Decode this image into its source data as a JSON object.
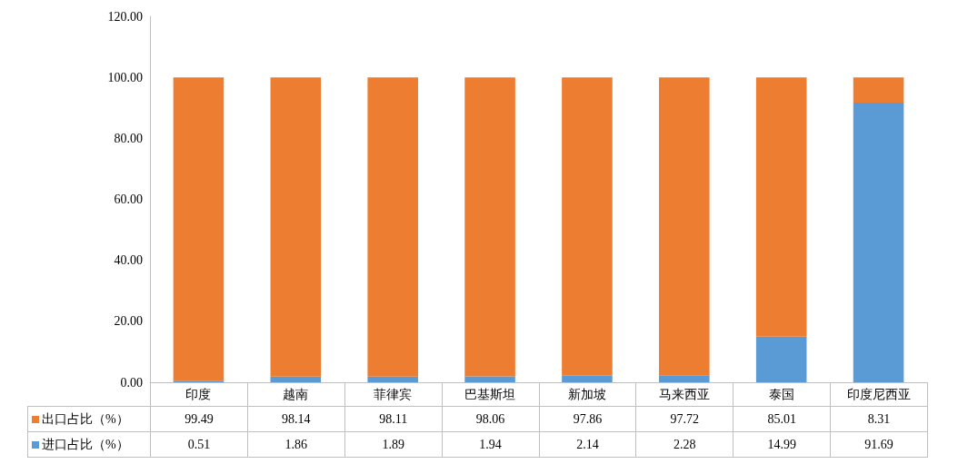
{
  "chart_data": {
    "type": "bar",
    "stacked": true,
    "categories": [
      "印度",
      "越南",
      "菲律宾",
      "巴基斯坦",
      "新加坡",
      "马来西亚",
      "泰国",
      "印度尼西亚"
    ],
    "series": [
      {
        "name": "进口占比（%）",
        "color": "#5b9bd5",
        "values": [
          0.51,
          1.86,
          1.89,
          1.94,
          2.14,
          2.28,
          14.99,
          91.69
        ]
      },
      {
        "name": "出口占比（%）",
        "color": "#ed7d31",
        "values": [
          99.49,
          98.14,
          98.11,
          98.06,
          97.86,
          97.72,
          85.01,
          8.31
        ]
      }
    ],
    "ylim": [
      0,
      120
    ],
    "yticks": [
      {
        "value": 0,
        "label": "0.00"
      },
      {
        "value": 20,
        "label": "20.00"
      },
      {
        "value": 40,
        "label": "40.00"
      },
      {
        "value": 60,
        "label": "60.00"
      },
      {
        "value": 80,
        "label": "80.00"
      },
      {
        "value": 100,
        "label": "100.00"
      },
      {
        "value": 120,
        "label": "120.00"
      }
    ],
    "grid": false,
    "legend": "bottom left",
    "data_labels": true
  }
}
